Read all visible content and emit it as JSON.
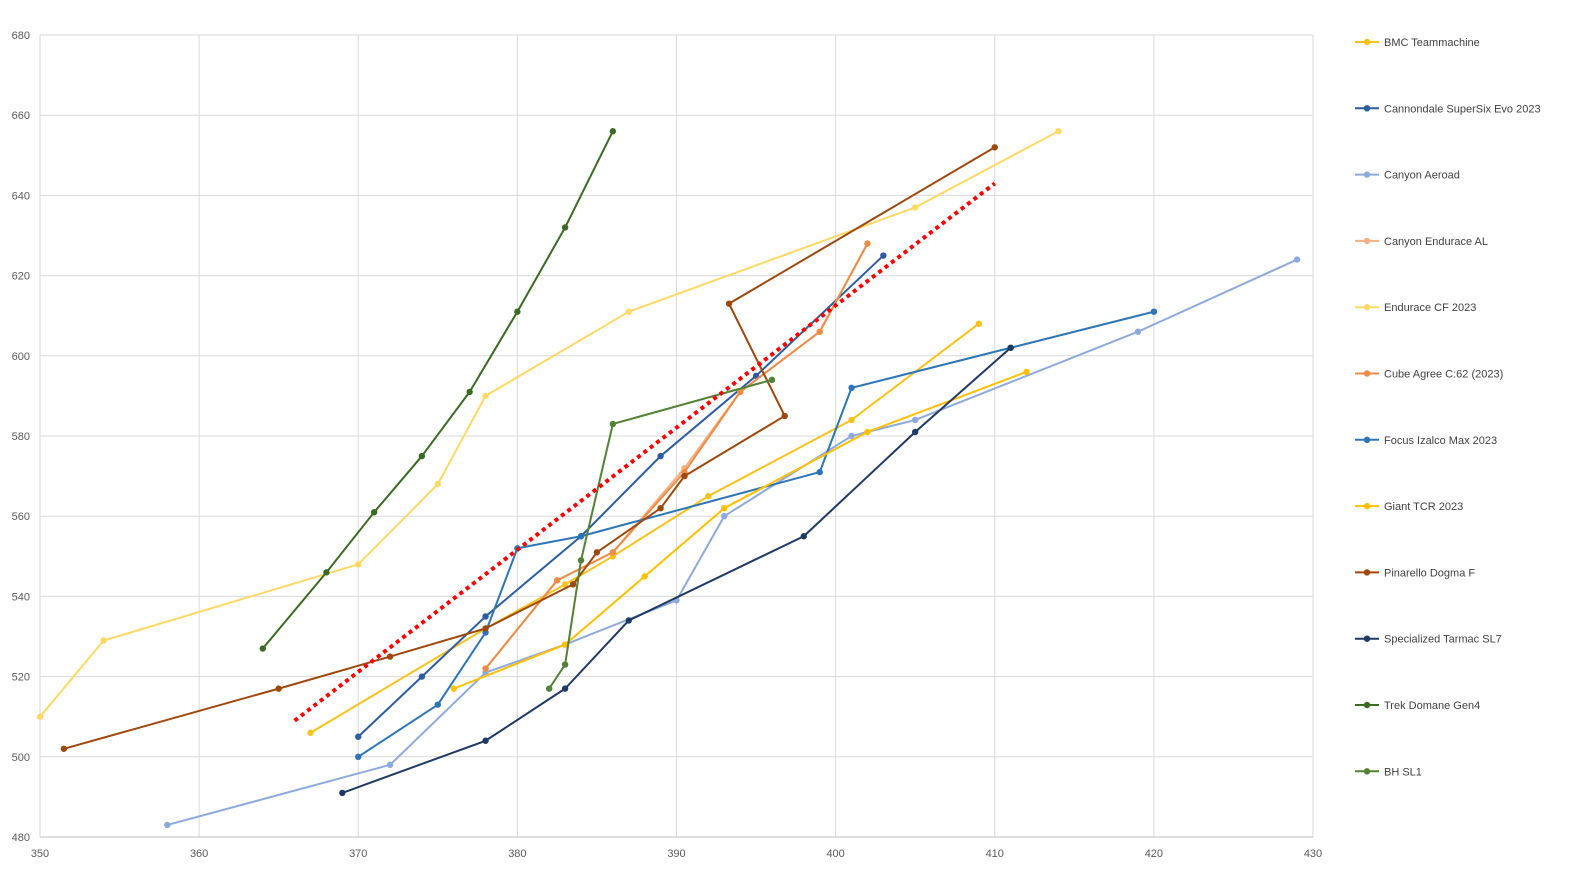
{
  "chart_data": {
    "type": "scatter",
    "xlim": [
      350,
      430
    ],
    "ylim": [
      480,
      680
    ],
    "x_ticks": [
      350,
      360,
      370,
      380,
      390,
      400,
      410,
      420,
      430
    ],
    "y_ticks": [
      480,
      500,
      520,
      540,
      560,
      580,
      600,
      620,
      640,
      660,
      680
    ],
    "grid": true,
    "legend_position": "right",
    "lines_with_markers": true,
    "series": [
      {
        "name": "BMC Teammachine",
        "color": "#f5c31c",
        "points": [
          [
            367,
            506
          ],
          [
            378,
            532
          ],
          [
            383,
            543
          ],
          [
            386,
            550
          ],
          [
            392,
            565
          ],
          [
            401,
            584
          ],
          [
            409,
            608
          ]
        ]
      },
      {
        "name": "Cannondale SuperSix Evo 2023",
        "color": "#2e5d9f",
        "points": [
          [
            370,
            505
          ],
          [
            374,
            520
          ],
          [
            378,
            535
          ],
          [
            384,
            555
          ],
          [
            389,
            575
          ],
          [
            395,
            595
          ],
          [
            403,
            625
          ]
        ]
      },
      {
        "name": "Canyon Aeroad",
        "color": "#8eaadb",
        "points": [
          [
            358,
            483
          ],
          [
            372,
            498
          ],
          [
            378,
            521
          ],
          [
            383,
            528
          ],
          [
            390,
            539
          ],
          [
            393,
            560
          ],
          [
            401,
            580
          ],
          [
            405,
            584
          ],
          [
            419,
            606
          ],
          [
            429,
            624
          ]
        ]
      },
      {
        "name": "Canyon Endurace AL",
        "color": "#f4b183",
        "points": [
          [
            378,
            522
          ],
          [
            382.5,
            544
          ],
          [
            386,
            551
          ],
          [
            390.5,
            572
          ],
          [
            394,
            591
          ],
          [
            399,
            606
          ],
          [
            402,
            628
          ]
        ]
      },
      {
        "name": "Endurace CF 2023",
        "color": "#ffd966",
        "points": [
          [
            350,
            510
          ],
          [
            354,
            529
          ],
          [
            370,
            548
          ],
          [
            375,
            568
          ],
          [
            378,
            590
          ],
          [
            387,
            611
          ],
          [
            405,
            637
          ],
          [
            414,
            656
          ]
        ]
      },
      {
        "name": "Cube Agree C:62 (2023)",
        "color": "#ed8c46",
        "points": [
          [
            378,
            522
          ],
          [
            382.5,
            544
          ],
          [
            386,
            551
          ],
          [
            390.5,
            571
          ],
          [
            394,
            591
          ],
          [
            399,
            606
          ],
          [
            402,
            628
          ]
        ]
      },
      {
        "name": "Focus Izalco Max 2023",
        "color": "#2e75b6",
        "points": [
          [
            370,
            500
          ],
          [
            375,
            513
          ],
          [
            378,
            531
          ],
          [
            380,
            552
          ],
          [
            384,
            555
          ],
          [
            399,
            571
          ],
          [
            401,
            592
          ],
          [
            411,
            602
          ],
          [
            420,
            611
          ]
        ]
      },
      {
        "name": "Giant TCR 2023",
        "color": "#ffc000",
        "points": [
          [
            376,
            517
          ],
          [
            383,
            528
          ],
          [
            388,
            545
          ],
          [
            393,
            562
          ],
          [
            402,
            581
          ],
          [
            412,
            596
          ]
        ]
      },
      {
        "name": "Pinarello Dogma F",
        "color": "#9e480e",
        "points": [
          [
            351.5,
            502
          ],
          [
            365,
            517
          ],
          [
            372,
            525
          ],
          [
            378,
            532
          ],
          [
            383.5,
            543
          ],
          [
            385,
            551
          ],
          [
            389,
            562
          ],
          [
            390.5,
            570
          ],
          [
            396.8,
            585
          ],
          [
            393.3,
            613
          ],
          [
            410,
            652
          ]
        ]
      },
      {
        "name": "Specialized Tarmac SL7",
        "color": "#203864",
        "points": [
          [
            369,
            491
          ],
          [
            378,
            504
          ],
          [
            383,
            517
          ],
          [
            387,
            534
          ],
          [
            398,
            555
          ],
          [
            405,
            581
          ],
          [
            411,
            602
          ]
        ]
      },
      {
        "name": "Trek Domane Gen4",
        "color": "#3a6b24",
        "points": [
          [
            364,
            527
          ],
          [
            368,
            546
          ],
          [
            371,
            561
          ],
          [
            374,
            575
          ],
          [
            377,
            591
          ],
          [
            380,
            611
          ],
          [
            383,
            632
          ],
          [
            386,
            656
          ]
        ]
      },
      {
        "name": "BH SL1",
        "color": "#538135",
        "points": [
          [
            382,
            517
          ],
          [
            383,
            523
          ],
          [
            384,
            549
          ],
          [
            386,
            583
          ],
          [
            396,
            594
          ]
        ]
      }
    ],
    "trendline": {
      "color": "#ff0000",
      "style": "dotted",
      "points": [
        [
          366,
          509
        ],
        [
          410,
          643
        ]
      ]
    }
  }
}
